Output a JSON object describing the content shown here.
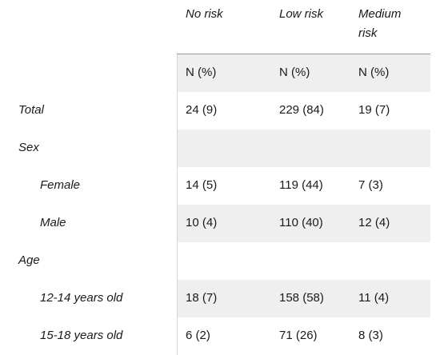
{
  "columns": {
    "no_risk": "No risk",
    "low_risk": "Low risk",
    "medium_risk_line1": "Medium",
    "medium_risk_line2": "risk"
  },
  "subheader": {
    "no_risk": "N (%)",
    "low_risk": "N (%)",
    "medium_risk": "N (%)"
  },
  "rows": [
    {
      "label": "Total",
      "no_risk": "24 (9)",
      "low_risk": "229 (84)",
      "medium_risk": "19 (7)"
    },
    {
      "label": "Sex",
      "no_risk": "",
      "low_risk": "",
      "medium_risk": ""
    },
    {
      "label": "Female",
      "no_risk": "14 (5)",
      "low_risk": "119 (44)",
      "medium_risk": "7 (3)"
    },
    {
      "label": "Male",
      "no_risk": "10 (4)",
      "low_risk": "110 (40)",
      "medium_risk": "12 (4)"
    },
    {
      "label": "Age",
      "no_risk": "",
      "low_risk": "",
      "medium_risk": ""
    },
    {
      "label": "12-14 years old",
      "no_risk": "18 (7)",
      "low_risk": "158 (58)",
      "medium_risk": "11 (4)"
    },
    {
      "label": "15-18 years old",
      "no_risk": "6 (2)",
      "low_risk": "71 (26)",
      "medium_risk": "8 (3)"
    }
  ]
}
